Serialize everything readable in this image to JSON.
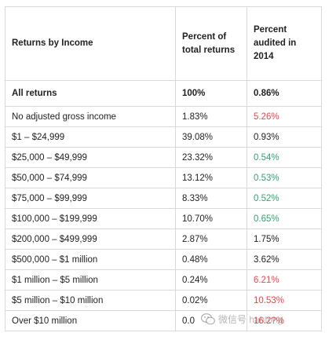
{
  "table": {
    "headers": {
      "income": "Returns by Income",
      "percent_total": "Percent of total returns",
      "percent_audited": "Percent audited in 2014"
    },
    "summary_row": {
      "label": "All returns",
      "percent_total": "100%",
      "percent_audited": "0.86%"
    },
    "rows": [
      {
        "label": "No adjusted gross income",
        "percent_total": "1.83%",
        "percent_audited": "5.26%",
        "audited_color": "red"
      },
      {
        "label": "$1 – $24,999",
        "percent_total": "39.08%",
        "percent_audited": "0.93%",
        "audited_color": "plain"
      },
      {
        "label": "$25,000 – $49,999",
        "percent_total": "23.32%",
        "percent_audited": "0.54%",
        "audited_color": "green"
      },
      {
        "label": "$50,000 – $74,999",
        "percent_total": "13.12%",
        "percent_audited": "0.53%",
        "audited_color": "green"
      },
      {
        "label": "$75,000 – $99,999",
        "percent_total": "8.33%",
        "percent_audited": "0.52%",
        "audited_color": "green"
      },
      {
        "label": "$100,000 – $199,999",
        "percent_total": "10.70%",
        "percent_audited": "0.65%",
        "audited_color": "green"
      },
      {
        "label": "$200,000 – $499,999",
        "percent_total": "2.87%",
        "percent_audited": "1.75%",
        "audited_color": "plain"
      },
      {
        "label": "$500,000 – $1 million",
        "percent_total": "0.48%",
        "percent_audited": "3.62%",
        "audited_color": "plain"
      },
      {
        "label": "$1 million – $5 million",
        "percent_total": "0.24%",
        "percent_audited": "6.21%",
        "audited_color": "red"
      },
      {
        "label": "$5 million – $10 million",
        "percent_total": "0.02%",
        "percent_audited": "10.53%",
        "audited_color": "red"
      },
      {
        "label": "Over $10 million",
        "percent_total": "0.0",
        "percent_audited": "16.2?%",
        "audited_color": "red"
      }
    ],
    "colors": {
      "red": "#e8474d",
      "green": "#35a372",
      "plain": "#222222",
      "border": "#d9d9d9"
    }
  },
  "watermark": {
    "text": "微信号 hantong",
    "icon": "wechat-icon"
  }
}
